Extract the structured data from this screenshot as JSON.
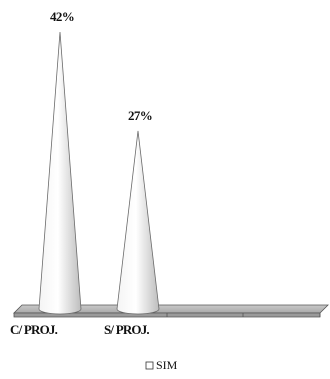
{
  "chart_data": {
    "type": "bar",
    "style": "3d-cone",
    "categories": [
      "C/ PROJ.",
      "S/ PROJ."
    ],
    "series": [
      {
        "name": "SIM",
        "values": [
          42,
          27
        ]
      }
    ],
    "data_labels": [
      "42%",
      "27%"
    ],
    "value_unit": "%",
    "title": "",
    "xlabel": "",
    "ylabel": "",
    "ylim": [
      0,
      42
    ],
    "grid": false,
    "legend_position": "bottom",
    "colors": {
      "cone_light": "#ffffff",
      "cone_dark": "#b8b8b8",
      "floor": "#b4b4b4",
      "floor_edge": "#555555"
    }
  }
}
